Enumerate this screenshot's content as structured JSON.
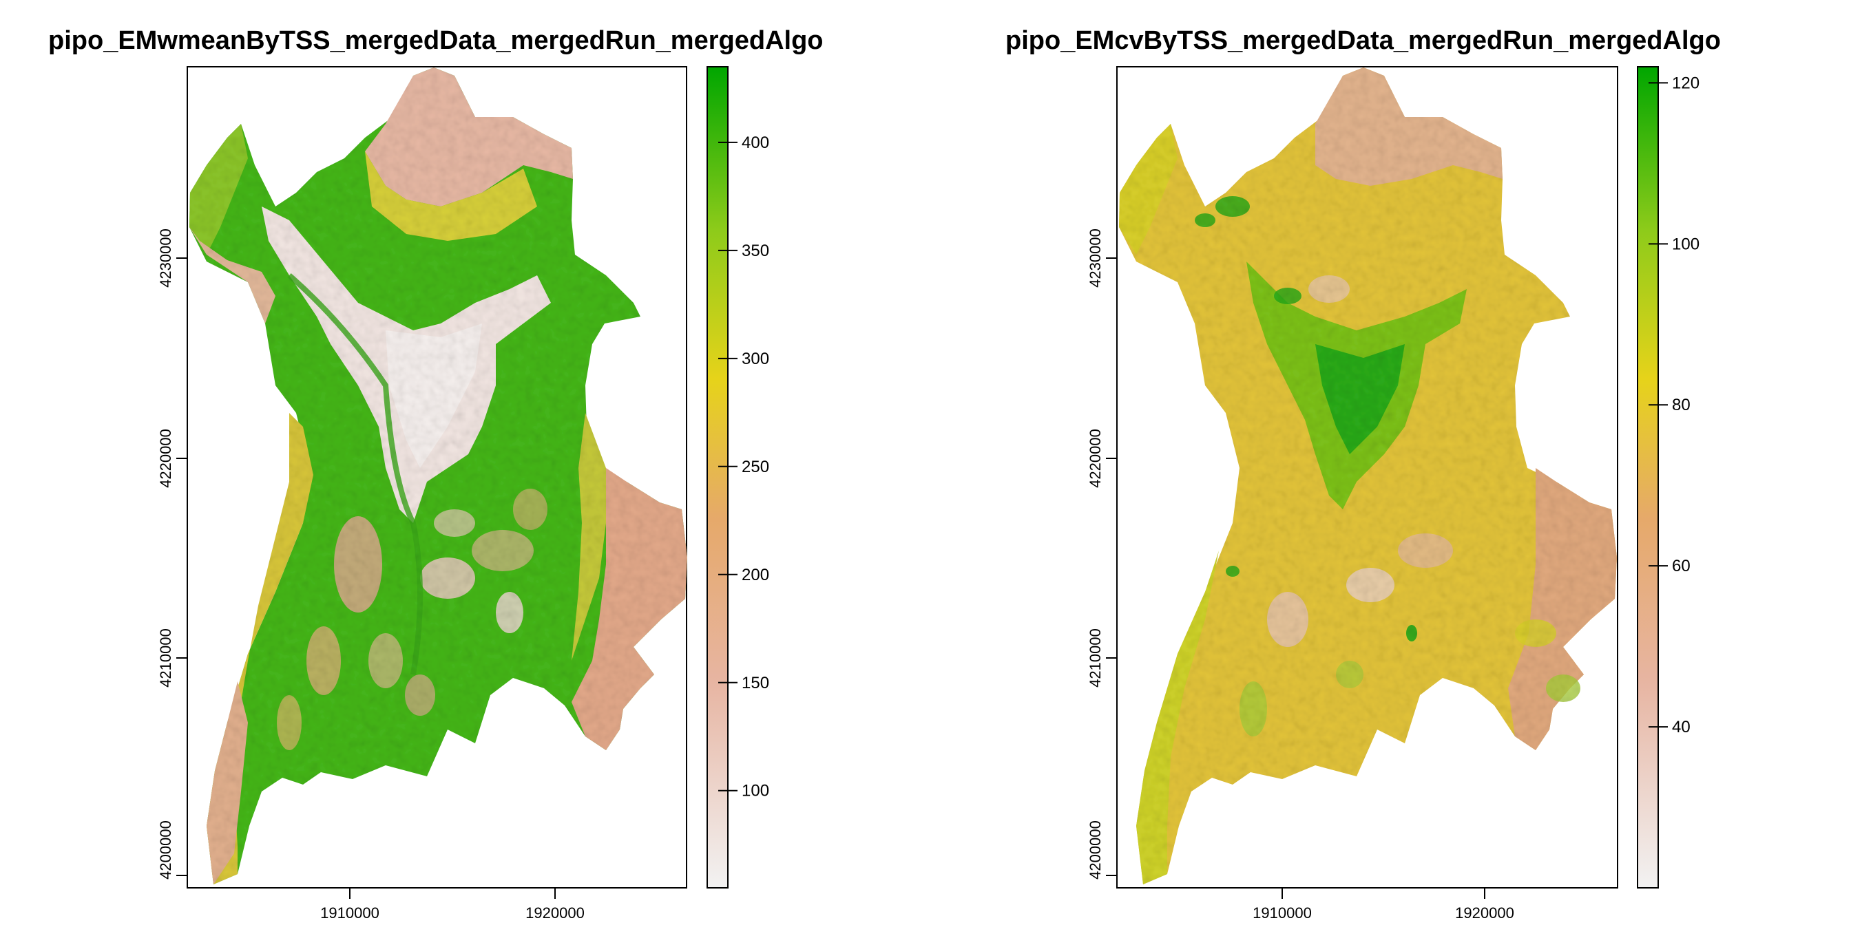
{
  "panels": [
    {
      "title": "pipo_EMwmeanByTSS_mergedData_mergedRun_mergedAlgo",
      "x_ticks": [
        "1910000",
        "1920000"
      ],
      "y_ticks": [
        "4200000",
        "4210000",
        "4220000",
        "4230000"
      ],
      "legend_ticks": [
        "100",
        "150",
        "200",
        "250",
        "300",
        "350",
        "400"
      ],
      "legend_range": [
        55,
        435
      ]
    },
    {
      "title": "pipo_EMcvByTSS_mergedData_mergedRun_mergedAlgo",
      "x_ticks": [
        "1910000",
        "1920000"
      ],
      "y_ticks": [
        "4200000",
        "4210000",
        "4220000",
        "4230000"
      ],
      "legend_ticks": [
        "40",
        "60",
        "80",
        "100",
        "120"
      ],
      "legend_range": [
        20,
        122
      ]
    }
  ],
  "colors": {
    "low": "#f2f2f2",
    "mid_low": "#e7b5a2",
    "mid": "#e6d31a",
    "high": "#00a600"
  }
}
